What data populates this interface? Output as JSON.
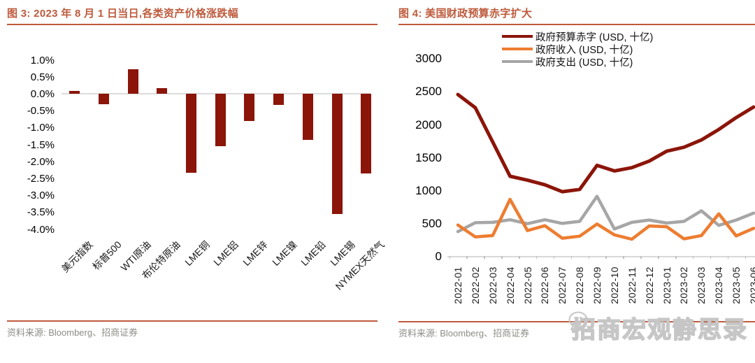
{
  "watermark": {
    "text": "招商宏观静思录",
    "icon": "wechat-icon"
  },
  "colors": {
    "accent_brick": "#BE5A3C",
    "dark_red": "#8B1509",
    "orange": "#ED7D31",
    "gray": "#A6A6A6",
    "axis_line": "#D9D9D9",
    "footer_text": "#8C8C87",
    "watermark_gray": "#C6C6C6"
  },
  "chart_data": [
    {
      "type": "bar",
      "title": "图 3: 2023 年 8 月 1 日当日,各类资产价格涨跌幅",
      "source": "资料来源: Bloomberg、招商证券",
      "categories": [
        "美元指数",
        "标普500",
        "WTI原油",
        "布伦特原油",
        "LME铜",
        "LME铝",
        "LME锌",
        "LME镍",
        "LME铅",
        "LME锡",
        "NYMEX天然气"
      ],
      "values": [
        0.08,
        -0.3,
        0.72,
        0.17,
        -2.34,
        -1.55,
        -0.81,
        -0.33,
        -1.36,
        -3.55,
        -2.35
      ],
      "unit": "%",
      "ylim": [
        -4.0,
        1.0
      ],
      "ytick_labels": [
        "1.0%",
        "0.5%",
        "0.0%",
        "-0.5%",
        "-1.0%",
        "-1.5%",
        "-2.0%",
        "-2.5%",
        "-3.0%",
        "-3.5%",
        "-4.0%"
      ],
      "ytick_values": [
        1.0,
        0.5,
        0.0,
        -0.5,
        -1.0,
        -1.5,
        -2.0,
        -2.5,
        -3.0,
        -3.5,
        -4.0
      ],
      "bar_color": "#8B1509",
      "grid": false,
      "legend_position": "none"
    },
    {
      "type": "line",
      "title": "图 4: 美国财政预算赤字扩大",
      "source": "资料来源: Bloomberg、招商证券",
      "x": [
        "2022-01",
        "2022-02",
        "2022-03",
        "2022-04",
        "2022-05",
        "2022-06",
        "2022-07",
        "2022-08",
        "2022-09",
        "2022-10",
        "2022-11",
        "2022-12",
        "2023-01",
        "2023-02",
        "2023-03",
        "2023-04",
        "2023-05",
        "2023-06"
      ],
      "series": [
        {
          "name": "政府预算赤字 (USD, 十亿)",
          "color": "#8B1509",
          "width": 5,
          "values": [
            2450,
            2250,
            1730,
            1210,
            1150,
            1080,
            975,
            1010,
            1375,
            1290,
            1340,
            1440,
            1590,
            1650,
            1760,
            1920,
            2100,
            2260
          ]
        },
        {
          "name": "政府收入 (USD, 十亿)",
          "color": "#ED7D31",
          "width": 4.5,
          "values": [
            470,
            290,
            310,
            860,
            385,
            460,
            270,
            300,
            485,
            320,
            255,
            455,
            445,
            260,
            310,
            640,
            305,
            420
          ]
        },
        {
          "name": "政府支出 (USD, 十亿)",
          "color": "#A6A6A6",
          "width": 4.5,
          "values": [
            370,
            505,
            510,
            550,
            490,
            550,
            495,
            525,
            905,
            410,
            510,
            545,
            500,
            525,
            685,
            465,
            545,
            650
          ]
        }
      ],
      "ylim": [
        0,
        3000
      ],
      "ytick_labels": [
        "3000",
        "2500",
        "2000",
        "1500",
        "1000",
        "500",
        "0"
      ],
      "ytick_values": [
        3000,
        2500,
        2000,
        1500,
        1000,
        500,
        0
      ],
      "grid": false,
      "legend_position": "top"
    }
  ]
}
